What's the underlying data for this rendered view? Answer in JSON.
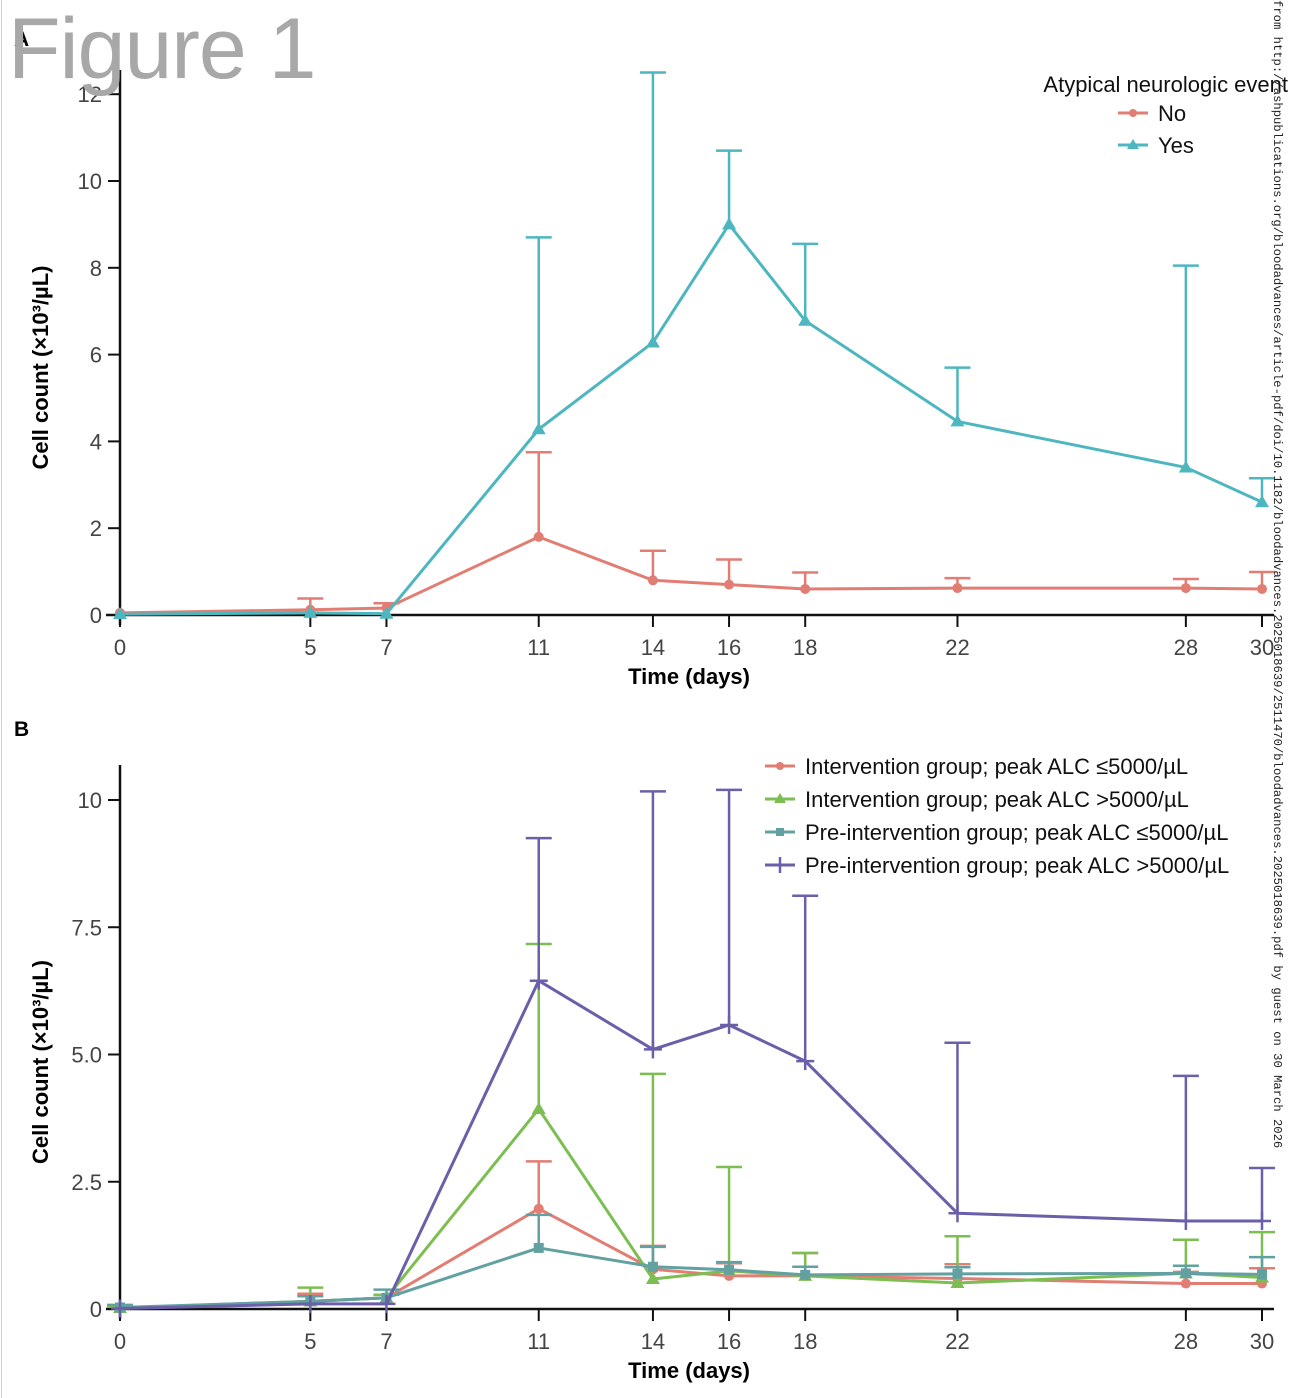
{
  "figure": {
    "title": "Figure 1",
    "watermark": "from http://ashpublications.org/bloodadvances/article-pdf/doi/10.1182/bloodadvances.2025018639/2511470/bloodadvances.2025018639.pdf by guest on 30 March 2026"
  },
  "colors": {
    "no": "#E27D73",
    "yes": "#4DB6BF",
    "int_low": "#E27D73",
    "int_high": "#7DBE52",
    "pre_low": "#63A0A1",
    "pre_high": "#6A5FA8"
  },
  "chart_data": [
    {
      "panel": "A",
      "type": "line",
      "xlabel": "Time (days)",
      "ylabel": "Cell count (×10³/µL)",
      "x": [
        0,
        5,
        7,
        11,
        14,
        16,
        18,
        22,
        28,
        30
      ],
      "xticks": [
        "0",
        "5",
        "7",
        "11",
        "14",
        "16",
        "18",
        "22",
        "28",
        "30"
      ],
      "xlim": [
        0,
        30
      ],
      "ylim": [
        0,
        12.6
      ],
      "yticks": [
        0,
        2,
        4,
        6,
        8,
        10,
        12
      ],
      "ytick_labels": [
        "0",
        "2",
        "4",
        "6",
        "8",
        "10",
        "12"
      ],
      "grid": false,
      "legend": {
        "title": "Atypical neurologic event",
        "position": "top-right"
      },
      "series": [
        {
          "name": "No",
          "marker": "circle",
          "color_key": "no",
          "values": [
            0.05,
            0.12,
            0.16,
            1.8,
            0.8,
            0.7,
            0.6,
            0.62,
            0.62,
            0.6
          ],
          "error_top": [
            0.05,
            0.38,
            0.27,
            3.75,
            1.48,
            1.28,
            0.98,
            0.85,
            0.83,
            0.99
          ]
        },
        {
          "name": "Yes",
          "marker": "triangle",
          "color_key": "yes",
          "values": [
            0.02,
            0.05,
            0.03,
            4.28,
            6.28,
            9.0,
            6.78,
            4.46,
            3.4,
            2.6
          ],
          "error_top": [
            0.02,
            0.05,
            0.03,
            8.7,
            12.5,
            10.7,
            8.55,
            5.7,
            8.05,
            3.15
          ]
        }
      ]
    },
    {
      "panel": "B",
      "type": "line",
      "xlabel": "Time (days)",
      "ylabel": "Cell count (×10³/µL)",
      "x": [
        0,
        5,
        7,
        11,
        14,
        16,
        18,
        22,
        28,
        30
      ],
      "xticks": [
        "0",
        "5",
        "7",
        "11",
        "14",
        "16",
        "18",
        "22",
        "28",
        "30"
      ],
      "xlim": [
        0,
        30
      ],
      "ylim": [
        0,
        10.7
      ],
      "yticks": [
        0,
        2.5,
        5.0,
        7.5,
        10
      ],
      "ytick_labels": [
        "0",
        "2.5",
        "5.0",
        "7.5",
        "10"
      ],
      "grid": false,
      "legend": {
        "title": "",
        "position": "top-right"
      },
      "series": [
        {
          "name": "Intervention group; peak ALC ≤5000/µL",
          "marker": "circle",
          "color_key": "int_low",
          "values": [
            0.02,
            0.15,
            0.22,
            1.97,
            0.78,
            0.65,
            0.65,
            0.6,
            0.5,
            0.5
          ],
          "error_top": [
            0.05,
            0.3,
            0.28,
            2.9,
            1.24,
            0.9,
            1.1,
            0.88,
            0.73,
            0.8
          ]
        },
        {
          "name": "Intervention group; peak ALC >5000/µL",
          "marker": "triangle",
          "color_key": "int_high",
          "values": [
            0.02,
            0.15,
            0.22,
            3.93,
            0.59,
            0.75,
            0.65,
            0.51,
            0.7,
            0.62
          ],
          "error_top": [
            0.05,
            0.42,
            0.28,
            7.17,
            4.62,
            2.79,
            1.1,
            1.43,
            1.36,
            1.51
          ]
        },
        {
          "name": "Pre-intervention group; peak ALC ≤5000/µL",
          "marker": "square",
          "color_key": "pre_low",
          "values": [
            0.03,
            0.15,
            0.22,
            1.2,
            0.83,
            0.77,
            0.67,
            0.69,
            0.7,
            0.68
          ],
          "error_top": [
            0.08,
            0.25,
            0.38,
            1.85,
            1.22,
            0.92,
            0.83,
            0.82,
            0.85,
            1.02
          ]
        },
        {
          "name": "Pre-intervention group; peak ALC >5000/µL",
          "marker": "plus",
          "color_key": "pre_high",
          "values": [
            0.01,
            0.1,
            0.1,
            6.45,
            5.1,
            5.58,
            4.87,
            1.88,
            1.73,
            1.73
          ],
          "error_top": [
            0.01,
            0.1,
            0.1,
            9.25,
            10.17,
            10.2,
            8.12,
            5.23,
            4.58,
            2.77
          ]
        }
      ]
    }
  ]
}
